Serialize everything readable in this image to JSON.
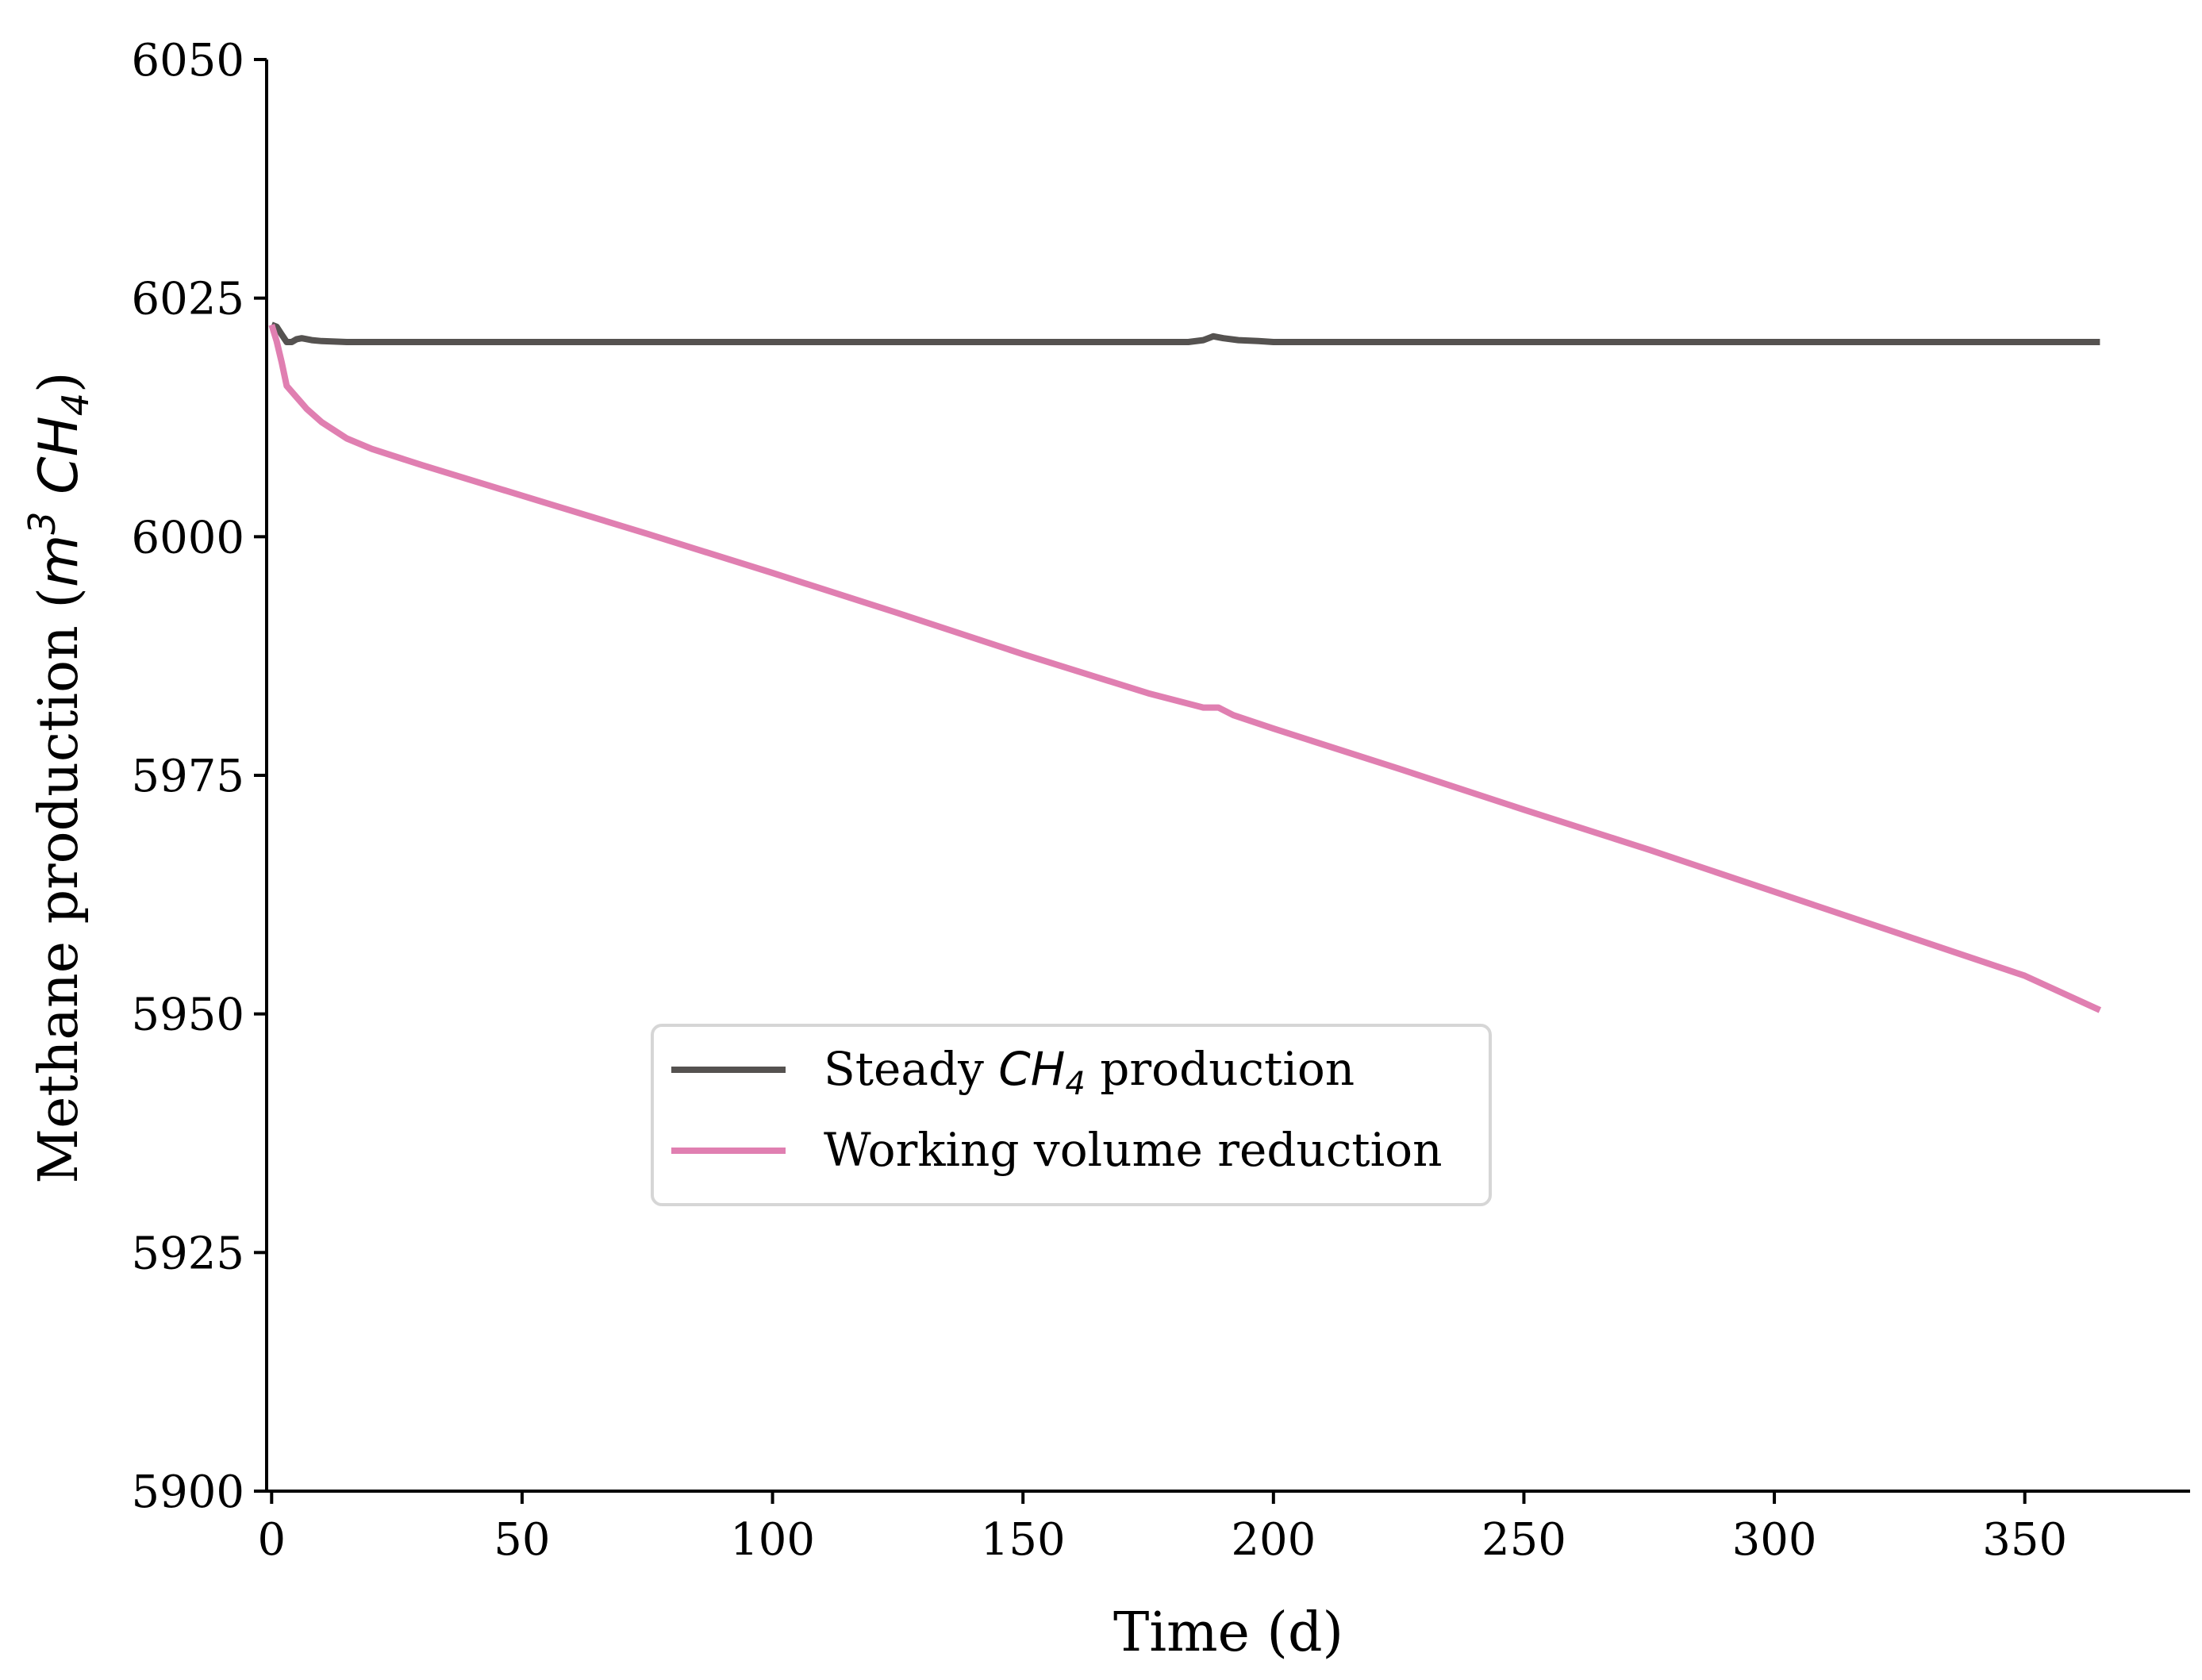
{
  "chart_data": {
    "type": "line",
    "title": "",
    "xlabel": "Time (d)",
    "ylabel": {
      "prefix": "Methane production (",
      "unit_m": "m",
      "unit_m_sup": "3",
      "unit_ch": "CH",
      "unit_ch_sub": "4",
      "suffix": ")"
    },
    "xlim": [
      -1,
      383
    ],
    "ylim": [
      5900,
      6050
    ],
    "xticks": [
      0,
      50,
      100,
      150,
      200,
      250,
      300,
      350
    ],
    "yticks": [
      5900,
      5925,
      5950,
      5975,
      6000,
      6025,
      6050
    ],
    "grid": false,
    "legend_position": "center-left",
    "series": [
      {
        "name": "Steady CH4 production",
        "legend_parts": {
          "prefix": "Steady ",
          "math": "CH",
          "sub": "4",
          "suffix": " production"
        },
        "color": "#555250",
        "x": [
          0,
          1,
          2,
          3,
          4,
          5,
          6,
          8,
          10,
          15,
          20,
          50,
          100,
          150,
          183,
          186,
          188,
          190,
          193,
          197,
          200,
          250,
          300,
          365
        ],
        "y": [
          6022.2,
          6022.0,
          6021.2,
          6020.4,
          6020.4,
          6020.7,
          6020.8,
          6020.6,
          6020.5,
          6020.4,
          6020.4,
          6020.4,
          6020.4,
          6020.4,
          6020.4,
          6020.6,
          6021.0,
          6020.8,
          6020.6,
          6020.5,
          6020.4,
          6020.4,
          6020.4,
          6020.4
        ]
      },
      {
        "name": "Working volume reduction",
        "legend_parts": {
          "prefix": "Working volume reduction",
          "math": "",
          "sub": "",
          "suffix": ""
        },
        "color": "#e07fb1",
        "x": [
          0,
          1,
          2,
          3,
          5,
          7,
          10,
          15,
          20,
          30,
          50,
          75,
          100,
          125,
          150,
          175,
          186,
          189,
          192,
          200,
          225,
          250,
          275,
          300,
          325,
          350,
          365
        ],
        "y": [
          6022.2,
          6020.5,
          6018.3,
          6015.8,
          6014.6,
          6013.4,
          6012.0,
          6010.3,
          6009.2,
          6007.5,
          6004.3,
          6000.3,
          5996.2,
          5992.0,
          5987.7,
          5983.6,
          5982.1,
          5982.1,
          5981.3,
          5979.9,
          5975.7,
          5971.4,
          5967.2,
          5962.8,
          5958.4,
          5954.0,
          5950.4
        ]
      }
    ]
  }
}
